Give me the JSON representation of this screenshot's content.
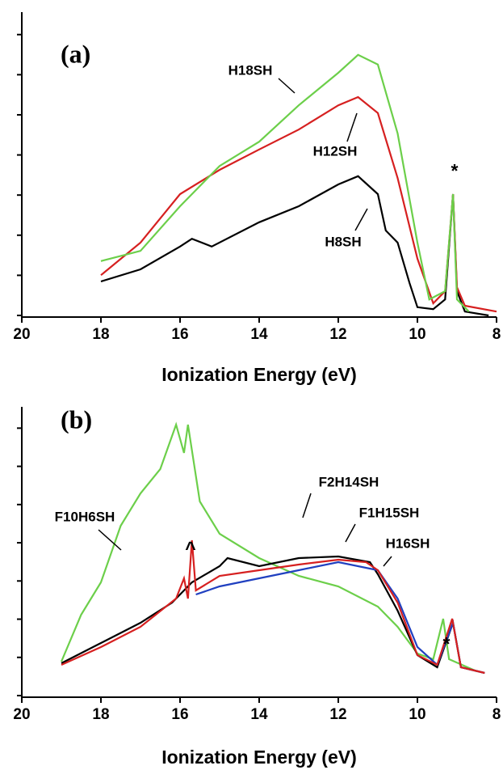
{
  "chart_data": [
    {
      "type": "line",
      "title": "(a)",
      "x_label": "Ionization Energy (eV)",
      "xlim": [
        20,
        8
      ],
      "xticks": [
        20,
        18,
        16,
        14,
        12,
        10,
        8
      ],
      "ylim": [
        -0.033,
        6.25
      ],
      "annotations": [
        "*"
      ],
      "series": [
        {
          "name": "H8SH",
          "color": "#000000",
          "x": [
            18,
            17,
            16,
            15.7,
            15.2,
            14,
            13,
            12,
            11.5,
            11,
            10.8,
            10.5,
            10.2,
            10,
            9.6,
            9.3,
            9.1,
            9.0,
            8.8,
            8.2
          ],
          "values": [
            0.7,
            0.95,
            1.42,
            1.58,
            1.42,
            1.92,
            2.25,
            2.7,
            2.87,
            2.5,
            1.75,
            1.5,
            0.67,
            0.17,
            0.13,
            0.33,
            2.5,
            0.5,
            0.08,
            0
          ]
        },
        {
          "name": "H12SH",
          "color": "#d62020",
          "x": [
            18,
            17,
            16,
            15,
            14,
            13,
            12,
            11.5,
            11,
            10.5,
            10,
            9.6,
            9.3,
            9.1,
            9,
            8.8,
            8
          ],
          "values": [
            0.83,
            1.5,
            2.5,
            3.0,
            3.42,
            3.83,
            4.33,
            4.5,
            4.17,
            2.83,
            1.17,
            0.25,
            0.5,
            2.5,
            0.58,
            0.2,
            0.08
          ]
        },
        {
          "name": "H18SH",
          "color": "#6ccf4a",
          "x": [
            18,
            17,
            16,
            15,
            14,
            13,
            12,
            11.5,
            11,
            10.5,
            10,
            9.7,
            9.3,
            9.1,
            9,
            8.7
          ],
          "values": [
            1.12,
            1.33,
            2.25,
            3.08,
            3.58,
            4.33,
            5.0,
            5.37,
            5.17,
            3.75,
            1.5,
            0.33,
            0.5,
            2.5,
            0.33,
            0.08
          ]
        }
      ]
    },
    {
      "type": "line",
      "title": "(b)",
      "x_label": "Ionization Energy (eV)",
      "xlim": [
        20,
        8
      ],
      "xticks": [
        20,
        18,
        16,
        14,
        12,
        10,
        8
      ],
      "ylim": [
        -0.6,
        6.58
      ],
      "annotations": [
        "^",
        "*"
      ],
      "series": [
        {
          "name": "F10H6SH",
          "color": "#6ccf4a",
          "x": [
            19,
            18.5,
            18,
            17.5,
            17,
            16.5,
            16.1,
            15.9,
            15.8,
            15.5,
            15,
            14,
            13,
            12,
            11,
            10.5,
            10,
            9.6,
            9.35,
            9.2,
            8.5
          ],
          "values": [
            0.28,
            1.44,
            2.24,
            3.64,
            4.44,
            5.04,
            6.14,
            5.44,
            6.14,
            4.24,
            3.44,
            2.84,
            2.4,
            2.14,
            1.64,
            1.14,
            0.48,
            0.34,
            1.34,
            0.34,
            0.04
          ]
        },
        {
          "name": "F2H14SH",
          "color": "#000000",
          "x": [
            19,
            18,
            17,
            16.2,
            16,
            15.7,
            15,
            14.8,
            14,
            13,
            12,
            11.2,
            11,
            10.5,
            10,
            9.5,
            9.1,
            8.9,
            8.3
          ],
          "values": [
            0.24,
            0.74,
            1.24,
            1.74,
            1.94,
            2.24,
            2.64,
            2.84,
            2.64,
            2.84,
            2.88,
            2.74,
            2.44,
            1.54,
            0.44,
            0.14,
            1.24,
            0.14,
            0
          ]
        },
        {
          "name": "H16SH",
          "color": "#2040c0",
          "x": [
            15.6,
            15,
            14,
            13,
            12,
            11,
            10.5,
            10,
            9.5,
            9.1,
            8.9,
            8.3
          ],
          "values": [
            1.94,
            2.14,
            2.34,
            2.54,
            2.74,
            2.54,
            1.84,
            0.64,
            0.2,
            1.24,
            0.14,
            0
          ]
        },
        {
          "name": "F1H15SH",
          "color": "#d62020",
          "x": [
            19,
            18,
            17,
            16.1,
            15.9,
            15.8,
            15.7,
            15.6,
            15,
            14,
            13,
            12,
            11.3,
            11,
            10.5,
            10,
            9.5,
            9.12,
            8.9,
            8.3
          ],
          "values": [
            0.2,
            0.64,
            1.14,
            1.84,
            2.34,
            1.84,
            3.28,
            2.04,
            2.4,
            2.54,
            2.68,
            2.8,
            2.74,
            2.54,
            1.74,
            0.44,
            0.2,
            1.34,
            0.14,
            0
          ]
        }
      ]
    }
  ]
}
